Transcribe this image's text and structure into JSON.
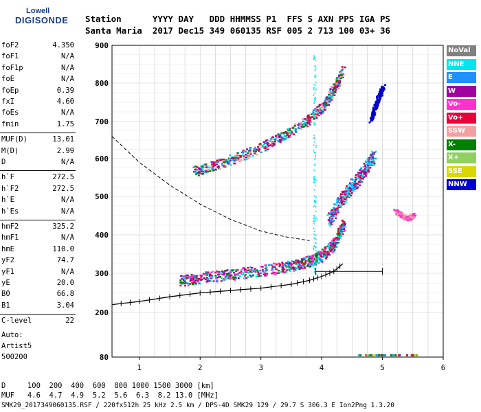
{
  "logo": {
    "line1": "Lowell",
    "line2": "DIGISONDE"
  },
  "header": {
    "labels": "Station      YYYY DAY   DDD HHMMSS P1  FFS S AXN PPS IGA PS",
    "values": "Santa Maria  2017 Dec15 349 060135 RSF 005 2 713 100 03+ 36"
  },
  "params": [
    {
      "k": "foF2",
      "v": "4.350"
    },
    {
      "k": "foF1",
      "v": "N/A"
    },
    {
      "k": "foF1p",
      "v": "N/A"
    },
    {
      "k": "foE",
      "v": "N/A"
    },
    {
      "k": "foEp",
      "v": "0.39"
    },
    {
      "k": "fxI",
      "v": "4.60"
    },
    {
      "k": "foEs",
      "v": "N/A"
    },
    {
      "k": "fmin",
      "v": "1.75"
    },
    {
      "k": "MUF(D)",
      "v": "13.01"
    },
    {
      "k": "M(D)",
      "v": "2.99"
    },
    {
      "k": "D",
      "v": "N/A"
    },
    {
      "k": "h`F",
      "v": "272.5"
    },
    {
      "k": "h`F2",
      "v": "272.5"
    },
    {
      "k": "h`E",
      "v": "N/A"
    },
    {
      "k": "h`Es",
      "v": "N/A"
    },
    {
      "k": "hmF2",
      "v": "325.2"
    },
    {
      "k": "hmF1",
      "v": "N/A"
    },
    {
      "k": "hmE",
      "v": "110.0"
    },
    {
      "k": "yF2",
      "v": "74.7"
    },
    {
      "k": "yF1",
      "v": "N/A"
    },
    {
      "k": "yE",
      "v": "20.0"
    },
    {
      "k": "B0",
      "v": "66.8"
    },
    {
      "k": "B1",
      "v": "3.04"
    },
    {
      "k": "C-level",
      "v": "22"
    }
  ],
  "auto": {
    "l1": "Auto:",
    "l2": "Artist5",
    "l3": "500200"
  },
  "legend": [
    {
      "label": "NoVal",
      "color": "#808080"
    },
    {
      "label": "NNE",
      "color": "#00e5ee"
    },
    {
      "label": "E",
      "color": "#1e90ff"
    },
    {
      "label": "W",
      "color": "#a000a0"
    },
    {
      "label": "Vo-",
      "color": "#ff33cc"
    },
    {
      "label": "Vo+",
      "color": "#e8003a"
    },
    {
      "label": "SSW",
      "color": "#f5a0a0"
    },
    {
      "label": "X-",
      "color": "#008000"
    },
    {
      "label": "X+",
      "color": "#90d060"
    },
    {
      "label": "SSE",
      "color": "#d8d800"
    },
    {
      "label": "NNW",
      "color": "#0000cc"
    }
  ],
  "footer": {
    "d_row": "D     100  200  400  600  800 1000 1500 3000 [km]",
    "muf_row": "MUF   4.6  4.7  4.9  5.2  5.6  6.3  8.2 13.0 [MHz]",
    "info": "SMK29_2017349060135.RSF / 220fx512h 25 kHz 2.5 km / DPS-4D SMK29 129 / 29.7 S 306.3 E Ion2Png 1.3.20"
  },
  "chart_data": {
    "type": "scatter",
    "xlabel": "",
    "ylabel": "",
    "xlim": [
      0.55,
      6.0
    ],
    "ylim": [
      80,
      900
    ],
    "x_ticks": [
      1,
      2,
      3,
      4,
      5,
      6
    ],
    "y_ticks": [
      80,
      200,
      300,
      400,
      500,
      600,
      700,
      800,
      900
    ],
    "grid": true,
    "clusters": [
      {
        "name": "F2 O-trace",
        "color_mix": [
          "#e8003a",
          "#ff33cc",
          "#a000a0",
          "#00e5ee",
          "#1e90ff",
          "#008000"
        ],
        "points": [
          [
            1.65,
            272
          ],
          [
            2.0,
            282
          ],
          [
            2.5,
            290
          ],
          [
            3.0,
            300
          ],
          [
            3.5,
            312
          ],
          [
            3.8,
            325
          ],
          [
            4.0,
            340
          ],
          [
            4.2,
            370
          ],
          [
            4.35,
            420
          ]
        ],
        "spread": 28
      },
      {
        "name": "F2 upper cusp",
        "color_mix": [
          "#00e5ee",
          "#1e90ff",
          "#a000a0",
          "#e8003a"
        ],
        "points": [
          [
            4.1,
            430
          ],
          [
            4.3,
            480
          ],
          [
            4.5,
            520
          ],
          [
            4.7,
            560
          ],
          [
            4.85,
            600
          ]
        ],
        "spread": 35
      },
      {
        "name": "Second hop",
        "color_mix": [
          "#a000a0",
          "#e8003a",
          "#008000",
          "#1e90ff",
          "#f5a0a0",
          "#00e5ee"
        ],
        "points": [
          [
            1.9,
            560
          ],
          [
            2.3,
            580
          ],
          [
            2.8,
            610
          ],
          [
            3.3,
            650
          ],
          [
            3.7,
            690
          ],
          [
            4.0,
            730
          ],
          [
            4.2,
            780
          ],
          [
            4.35,
            830
          ]
        ],
        "spread": 25
      },
      {
        "name": "NNW upper",
        "color_mix": [
          "#0000cc"
        ],
        "points": [
          [
            4.8,
            700
          ],
          [
            4.9,
            750
          ],
          [
            5.0,
            790
          ]
        ],
        "spread": 10
      },
      {
        "name": "SSW outliers",
        "color_mix": [
          "#f5a0a0",
          "#ff33cc"
        ],
        "points": [
          [
            5.2,
            460
          ],
          [
            5.4,
            440
          ],
          [
            5.5,
            450
          ]
        ],
        "spread": 10
      }
    ],
    "profile_line": {
      "x": [
        0.55,
        1.0,
        1.5,
        2.0,
        2.5,
        3.0,
        3.5,
        3.8,
        4.0,
        4.2,
        4.35
      ],
      "y": [
        220,
        228,
        240,
        250,
        256,
        262,
        272,
        282,
        292,
        305,
        325
      ]
    },
    "dashed_line": {
      "x": [
        0.55,
        1.0,
        1.5,
        2.0,
        2.5,
        3.0,
        3.4,
        3.8
      ],
      "y": [
        660,
        590,
        530,
        480,
        440,
        410,
        395,
        385
      ]
    },
    "error_bar": {
      "x": [
        3.9,
        5.0
      ],
      "y": 305
    },
    "bottom_dots": {
      "x": [
        4.6,
        5.55
      ],
      "y": 84,
      "colors": [
        "#1e90ff",
        "#d8d800",
        "#008000",
        "#e8003a"
      ]
    }
  }
}
